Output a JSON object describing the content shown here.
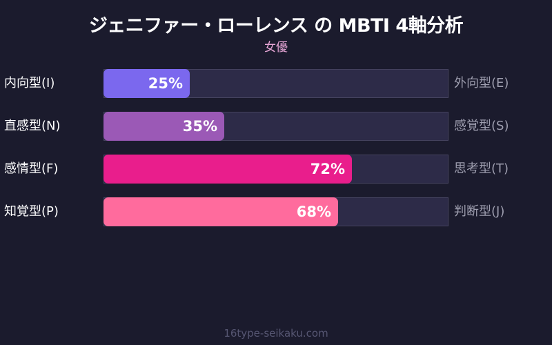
{
  "header": {
    "title": "ジェニファー・ローレンス の MBTI 4軸分析",
    "subtitle": "女優"
  },
  "rows": [
    {
      "left": "内向型(I)",
      "right": "外向型(E)",
      "value": 25,
      "label": "25%",
      "color": "#7b68ee"
    },
    {
      "left": "直感型(N)",
      "right": "感覚型(S)",
      "value": 35,
      "label": "35%",
      "color": "#9b59b6"
    },
    {
      "left": "感情型(F)",
      "right": "思考型(T)",
      "value": 72,
      "label": "72%",
      "color": "#e91e8c"
    },
    {
      "left": "知覚型(P)",
      "right": "判断型(J)",
      "value": 68,
      "label": "68%",
      "color": "#ff6b9d"
    }
  ],
  "footer": {
    "text": "16type-seikaku.com"
  },
  "chart_data": {
    "type": "bar",
    "orientation": "horizontal",
    "title": "ジェニファー・ローレンス の MBTI 4軸分析",
    "subtitle": "女優",
    "categories": [
      "内向型(I) / 外向型(E)",
      "直感型(N) / 感覚型(S)",
      "感情型(F) / 思考型(T)",
      "知覚型(P) / 判断型(J)"
    ],
    "left_labels": [
      "内向型(I)",
      "直感型(N)",
      "感情型(F)",
      "知覚型(P)"
    ],
    "right_labels": [
      "外向型(E)",
      "感覚型(S)",
      "思考型(T)",
      "判断型(J)"
    ],
    "values": [
      25,
      35,
      72,
      68
    ],
    "value_labels": [
      "25%",
      "35%",
      "72%",
      "68%"
    ],
    "colors": [
      "#7b68ee",
      "#9b59b6",
      "#e91e8c",
      "#ff6b9d"
    ],
    "xlim": [
      0,
      100
    ],
    "grid": false,
    "legend": "none",
    "footer": "16type-seikaku.com"
  }
}
